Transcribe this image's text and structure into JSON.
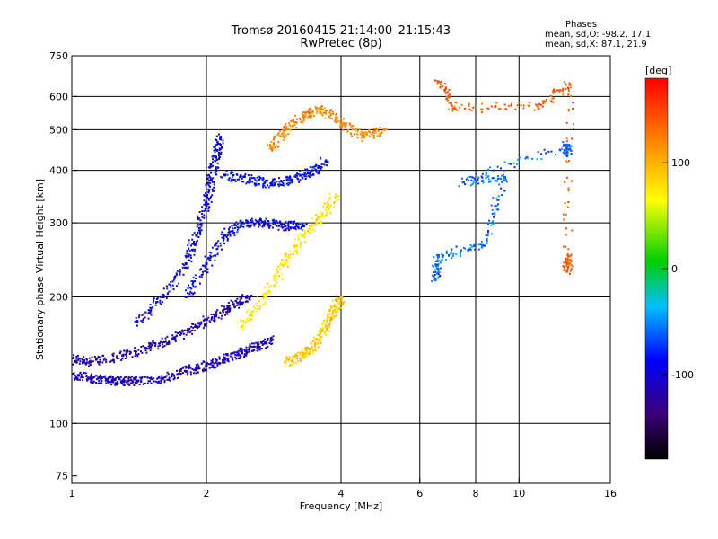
{
  "header": {
    "title": "Tromsø 20160415 21:14:00–21:15:43",
    "subtitle": "RwPretec (8p)",
    "phases_label": "Phases",
    "stats_o": "mean, sd,O: -98.2, 17.1",
    "stats_x": "mean, sd,X:  87.1, 21.9"
  },
  "colorbar": {
    "unit_label": "[deg]",
    "tick_labels": [
      "100",
      "0",
      "-100"
    ],
    "tick_values": [
      100,
      0,
      -100
    ],
    "range": [
      -180,
      180
    ]
  },
  "chart_data": {
    "type": "scatter",
    "title": "Tromsø 20160415 21:14:00–21:15:43",
    "subtitle": "RwPretec (8p)",
    "xlabel": "Frequency [MHz]",
    "ylabel": "Stationary phase Virtual Height [km]",
    "xscale": "log2",
    "yscale": "log",
    "xlim": [
      1,
      16
    ],
    "ylim": [
      72,
      750
    ],
    "x_ticks": [
      1,
      2,
      4,
      6,
      8,
      10,
      16
    ],
    "x_tick_labels": [
      "1",
      "2",
      "4",
      "6",
      "8",
      "10",
      "16"
    ],
    "y_ticks": [
      75,
      100,
      200,
      300,
      400,
      500,
      600,
      750
    ],
    "y_tick_labels": [
      "75",
      "100",
      "200",
      "300",
      "400",
      "500",
      "600",
      "750"
    ],
    "x_grid": [
      1,
      2,
      4,
      6,
      8,
      10,
      16
    ],
    "y_grid": [
      100,
      200,
      300,
      400,
      500,
      600
    ],
    "grid": true,
    "colormap": "rainbow (phase in degrees)",
    "traces": [
      {
        "name": "",
        "phase_deg": -110,
        "points": [
          [
            1.0,
            130
          ],
          [
            1.1,
            128
          ],
          [
            1.2,
            127
          ],
          [
            1.3,
            126
          ],
          [
            1.4,
            126
          ],
          [
            1.6,
            128
          ],
          [
            1.8,
            133
          ],
          [
            2.0,
            137
          ],
          [
            2.2,
            142
          ],
          [
            2.4,
            147
          ],
          [
            2.6,
            152
          ],
          [
            2.8,
            158
          ]
        ]
      },
      {
        "name": "",
        "phase_deg": -115,
        "points": [
          [
            1.0,
            142
          ],
          [
            1.1,
            140
          ],
          [
            1.3,
            145
          ],
          [
            1.5,
            152
          ],
          [
            1.7,
            160
          ],
          [
            1.9,
            170
          ],
          [
            2.1,
            180
          ],
          [
            2.3,
            192
          ],
          [
            2.5,
            200
          ]
        ]
      },
      {
        "name": "",
        "phase_deg": -95,
        "points": [
          [
            1.4,
            175
          ],
          [
            1.6,
            200
          ],
          [
            1.8,
            240
          ],
          [
            1.9,
            280
          ],
          [
            2.0,
            330
          ],
          [
            2.05,
            380
          ],
          [
            2.1,
            430
          ],
          [
            2.15,
            480
          ]
        ]
      },
      {
        "name": "",
        "phase_deg": -90,
        "points": [
          [
            1.8,
            200
          ],
          [
            2.0,
            240
          ],
          [
            2.2,
            280
          ],
          [
            2.4,
            300
          ],
          [
            2.7,
            300
          ],
          [
            3.0,
            295
          ],
          [
            3.3,
            295
          ]
        ]
      },
      {
        "name": "",
        "phase_deg": -85,
        "points": [
          [
            2.2,
            390
          ],
          [
            2.5,
            380
          ],
          [
            2.8,
            370
          ],
          [
            3.1,
            380
          ],
          [
            3.4,
            395
          ],
          [
            3.7,
            420
          ]
        ]
      },
      {
        "name": "",
        "phase_deg": 90,
        "points": [
          [
            3.0,
            140
          ],
          [
            3.3,
            145
          ],
          [
            3.5,
            155
          ],
          [
            3.7,
            170
          ],
          [
            3.85,
            185
          ],
          [
            4.0,
            200
          ]
        ]
      },
      {
        "name": "",
        "phase_deg": 75,
        "points": [
          [
            2.4,
            170
          ],
          [
            2.7,
            200
          ],
          [
            3.0,
            240
          ],
          [
            3.3,
            280
          ],
          [
            3.6,
            310
          ],
          [
            3.9,
            350
          ]
        ]
      },
      {
        "name": "",
        "phase_deg": 120,
        "points": [
          [
            2.8,
            450
          ],
          [
            3.0,
            500
          ],
          [
            3.3,
            540
          ],
          [
            3.6,
            560
          ],
          [
            4.0,
            520
          ],
          [
            4.5,
            480
          ],
          [
            5.0,
            500
          ]
        ]
      },
      {
        "name": "",
        "phase_deg": 140,
        "points": [
          [
            6.6,
            650
          ],
          [
            7.2,
            560
          ],
          [
            11.0,
            570
          ],
          [
            13.0,
            640
          ],
          [
            12.8,
            230
          ],
          [
            12.9,
            250
          ]
        ]
      },
      {
        "name": "",
        "phase_deg": -60,
        "points": [
          [
            6.5,
            220
          ],
          [
            6.6,
            250
          ],
          [
            8.3,
            265
          ],
          [
            9.3,
            385
          ],
          [
            7.5,
            375
          ],
          [
            12.8,
            460
          ],
          [
            12.8,
            440
          ]
        ]
      }
    ]
  }
}
